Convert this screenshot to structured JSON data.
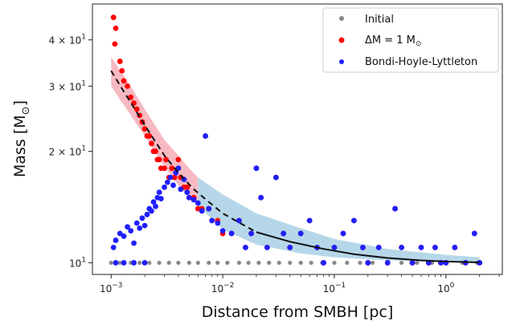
{
  "chart_data": {
    "type": "scatter",
    "xlabel": "Distance from SMBH [pc]",
    "ylabel": "Mass [M",
    "ylabel_sub": "⊙",
    "ylabel_close": "]",
    "xscale": "log",
    "yscale": "log",
    "xlim": [
      0.00068,
      3.2
    ],
    "ylim": [
      9.3,
      50
    ],
    "x_ticks": [
      {
        "value": 0.001,
        "base": "10",
        "exp": "−3"
      },
      {
        "value": 0.01,
        "base": "10",
        "exp": "−2"
      },
      {
        "value": 0.1,
        "base": "10",
        "exp": "−1"
      },
      {
        "value": 1,
        "base": "10",
        "exp": "0"
      }
    ],
    "y_ticks": [
      {
        "value": 10,
        "base": "10",
        "exp": "1",
        "mult": ""
      },
      {
        "value": 20,
        "base": "10",
        "exp": "1",
        "mult": "2 × "
      },
      {
        "value": 30,
        "base": "10",
        "exp": "1",
        "mult": "3 × "
      },
      {
        "value": 40,
        "base": "10",
        "exp": "1",
        "mult": "4 × "
      }
    ],
    "legend_position": "top-right",
    "grid": false,
    "series": [
      {
        "name": "Initial",
        "color": "#888888",
        "points": [
          [
            0.001,
            10
          ],
          [
            0.0012,
            10
          ],
          [
            0.0015,
            10
          ],
          [
            0.0018,
            10
          ],
          [
            0.0022,
            10
          ],
          [
            0.0027,
            10
          ],
          [
            0.0033,
            10
          ],
          [
            0.004,
            10
          ],
          [
            0.005,
            10
          ],
          [
            0.006,
            10
          ],
          [
            0.0075,
            10
          ],
          [
            0.009,
            10
          ],
          [
            0.011,
            10
          ],
          [
            0.014,
            10
          ],
          [
            0.017,
            10
          ],
          [
            0.021,
            10
          ],
          [
            0.026,
            10
          ],
          [
            0.032,
            10
          ],
          [
            0.04,
            10
          ],
          [
            0.05,
            10
          ],
          [
            0.062,
            10
          ],
          [
            0.078,
            10
          ],
          [
            0.1,
            10
          ],
          [
            0.13,
            10
          ],
          [
            0.17,
            10
          ],
          [
            0.22,
            10
          ],
          [
            0.3,
            10
          ],
          [
            0.4,
            10
          ],
          [
            0.55,
            10
          ],
          [
            0.75,
            10
          ],
          [
            1.0,
            10
          ],
          [
            1.4,
            10
          ],
          [
            1.9,
            10
          ]
        ]
      },
      {
        "name": "ΔM = 1 M⊙",
        "label_main": "ΔM = 1 M",
        "label_sub": "⊙",
        "color": "#ff0000",
        "points": [
          [
            0.00105,
            46
          ],
          [
            0.0011,
            43
          ],
          [
            0.00108,
            39
          ],
          [
            0.0012,
            35
          ],
          [
            0.00125,
            33
          ],
          [
            0.0013,
            31
          ],
          [
            0.0014,
            30
          ],
          [
            0.0015,
            28
          ],
          [
            0.0016,
            27
          ],
          [
            0.0017,
            26
          ],
          [
            0.0018,
            25
          ],
          [
            0.0019,
            24
          ],
          [
            0.002,
            23
          ],
          [
            0.0021,
            22
          ],
          [
            0.0022,
            22
          ],
          [
            0.0023,
            21
          ],
          [
            0.0024,
            20
          ],
          [
            0.0025,
            20
          ],
          [
            0.0026,
            19
          ],
          [
            0.0027,
            19
          ],
          [
            0.0028,
            18
          ],
          [
            0.003,
            18
          ],
          [
            0.0031,
            19
          ],
          [
            0.0033,
            17
          ],
          [
            0.0035,
            18
          ],
          [
            0.0037,
            17
          ],
          [
            0.004,
            19
          ],
          [
            0.0042,
            17
          ],
          [
            0.0045,
            16
          ],
          [
            0.0048,
            16
          ],
          [
            0.005,
            15
          ],
          [
            0.0055,
            15
          ],
          [
            0.006,
            14
          ],
          [
            0.0065,
            14
          ],
          [
            0.007,
            22
          ],
          [
            0.0075,
            14
          ],
          [
            0.008,
            13
          ],
          [
            0.009,
            13
          ],
          [
            0.01,
            12
          ],
          [
            0.012,
            12
          ],
          [
            0.014,
            13
          ],
          [
            0.016,
            11
          ],
          [
            0.018,
            12
          ],
          [
            0.02,
            18
          ],
          [
            0.022,
            15
          ],
          [
            0.025,
            11
          ],
          [
            0.03,
            17
          ],
          [
            0.035,
            12
          ],
          [
            0.04,
            11
          ],
          [
            0.05,
            12
          ],
          [
            0.06,
            13
          ],
          [
            0.07,
            11
          ],
          [
            0.08,
            10
          ],
          [
            0.1,
            11
          ],
          [
            0.12,
            12
          ],
          [
            0.15,
            13
          ],
          [
            0.18,
            11
          ],
          [
            0.2,
            10
          ],
          [
            0.25,
            11
          ],
          [
            0.3,
            10
          ],
          [
            0.35,
            14
          ],
          [
            0.4,
            11
          ],
          [
            0.5,
            10
          ],
          [
            0.6,
            11
          ],
          [
            0.7,
            10
          ],
          [
            0.8,
            11
          ],
          [
            0.9,
            10
          ],
          [
            1.0,
            10
          ],
          [
            1.2,
            11
          ],
          [
            1.5,
            10
          ],
          [
            1.8,
            12
          ],
          [
            2.0,
            10
          ]
        ]
      },
      {
        "name": "Bondi-Hoyle-Lyttleton",
        "color": "#1f1fff",
        "points": [
          [
            0.00105,
            11
          ],
          [
            0.0011,
            11.5
          ],
          [
            0.0012,
            12
          ],
          [
            0.0013,
            11.8
          ],
          [
            0.0014,
            12.5
          ],
          [
            0.0015,
            12.2
          ],
          [
            0.0016,
            11.3
          ],
          [
            0.0017,
            12.8
          ],
          [
            0.0018,
            12.4
          ],
          [
            0.0019,
            13.2
          ],
          [
            0.002,
            12.6
          ],
          [
            0.0021,
            13.5
          ],
          [
            0.0022,
            14
          ],
          [
            0.0023,
            13.8
          ],
          [
            0.0024,
            14.6
          ],
          [
            0.0025,
            14.2
          ],
          [
            0.0026,
            15
          ],
          [
            0.0027,
            15.5
          ],
          [
            0.0028,
            14.9
          ],
          [
            0.003,
            16
          ],
          [
            0.0032,
            16.5
          ],
          [
            0.0034,
            17
          ],
          [
            0.0036,
            16.2
          ],
          [
            0.0038,
            17.5
          ],
          [
            0.004,
            18
          ],
          [
            0.0042,
            15.8
          ],
          [
            0.0045,
            16.8
          ],
          [
            0.0048,
            15.5
          ],
          [
            0.005,
            15
          ],
          [
            0.0055,
            14.8
          ],
          [
            0.006,
            14.5
          ],
          [
            0.0065,
            13.8
          ],
          [
            0.007,
            22
          ],
          [
            0.0075,
            14
          ],
          [
            0.008,
            13
          ],
          [
            0.009,
            12.8
          ],
          [
            0.01,
            12.2
          ],
          [
            0.012,
            12
          ],
          [
            0.014,
            13
          ],
          [
            0.016,
            11
          ],
          [
            0.018,
            12
          ],
          [
            0.02,
            18
          ],
          [
            0.022,
            15
          ],
          [
            0.025,
            11
          ],
          [
            0.03,
            17
          ],
          [
            0.035,
            12
          ],
          [
            0.04,
            11
          ],
          [
            0.05,
            12
          ],
          [
            0.06,
            13
          ],
          [
            0.07,
            11
          ],
          [
            0.08,
            10
          ],
          [
            0.1,
            11
          ],
          [
            0.12,
            12
          ],
          [
            0.15,
            13
          ],
          [
            0.18,
            11
          ],
          [
            0.2,
            10
          ],
          [
            0.25,
            11
          ],
          [
            0.3,
            10
          ],
          [
            0.35,
            14
          ],
          [
            0.4,
            11
          ],
          [
            0.5,
            10
          ],
          [
            0.6,
            11
          ],
          [
            0.7,
            10
          ],
          [
            0.8,
            11
          ],
          [
            0.9,
            10
          ],
          [
            1.0,
            10
          ],
          [
            1.2,
            11
          ],
          [
            1.5,
            10
          ],
          [
            1.8,
            12
          ],
          [
            2.0,
            10
          ],
          [
            0.0011,
            10
          ],
          [
            0.0013,
            10
          ],
          [
            0.0016,
            10
          ],
          [
            0.002,
            10
          ]
        ]
      }
    ],
    "trend_lines": [
      {
        "label": "dashed fit",
        "color": "#111111",
        "style": "dashed",
        "points": [
          [
            0.001,
            33
          ],
          [
            0.0013,
            29
          ],
          [
            0.0017,
            25.5
          ],
          [
            0.0022,
            22.5
          ],
          [
            0.003,
            19.5
          ],
          [
            0.004,
            17.5
          ],
          [
            0.0055,
            15.8
          ],
          [
            0.0075,
            14.6
          ],
          [
            0.01,
            13.6
          ],
          [
            0.015,
            12.7
          ],
          [
            0.02,
            12.1
          ]
        ]
      },
      {
        "label": "solid fit",
        "color": "#111111",
        "style": "solid",
        "points": [
          [
            0.02,
            12.1
          ],
          [
            0.04,
            11.4
          ],
          [
            0.08,
            10.9
          ],
          [
            0.15,
            10.55
          ],
          [
            0.3,
            10.3
          ],
          [
            0.6,
            10.15
          ],
          [
            1.0,
            10.08
          ],
          [
            2.0,
            10.02
          ]
        ]
      }
    ],
    "bands": [
      {
        "label": "red band",
        "color": "#f4a3ad",
        "upper": [
          [
            0.001,
            36
          ],
          [
            0.0015,
            30
          ],
          [
            0.002,
            26
          ],
          [
            0.003,
            21.5
          ],
          [
            0.004,
            19.5
          ],
          [
            0.005,
            18
          ],
          [
            0.006,
            17
          ]
        ],
        "lower": [
          [
            0.001,
            30
          ],
          [
            0.0015,
            25
          ],
          [
            0.002,
            22
          ],
          [
            0.003,
            18.2
          ],
          [
            0.004,
            16.2
          ],
          [
            0.005,
            15
          ],
          [
            0.006,
            14.3
          ]
        ]
      },
      {
        "label": "blue band",
        "color": "#9ec9e2",
        "upper": [
          [
            0.006,
            17
          ],
          [
            0.01,
            15.3
          ],
          [
            0.02,
            13.6
          ],
          [
            0.05,
            12.4
          ],
          [
            0.1,
            11.6
          ],
          [
            0.3,
            10.9
          ],
          [
            1.0,
            10.5
          ],
          [
            2.0,
            10.35
          ]
        ],
        "lower": [
          [
            0.006,
            14.3
          ],
          [
            0.01,
            12.3
          ],
          [
            0.02,
            11.2
          ],
          [
            0.05,
            10.6
          ],
          [
            0.1,
            10.35
          ],
          [
            0.3,
            10.15
          ],
          [
            1.0,
            10.05
          ],
          [
            2.0,
            10.0
          ]
        ]
      }
    ]
  }
}
